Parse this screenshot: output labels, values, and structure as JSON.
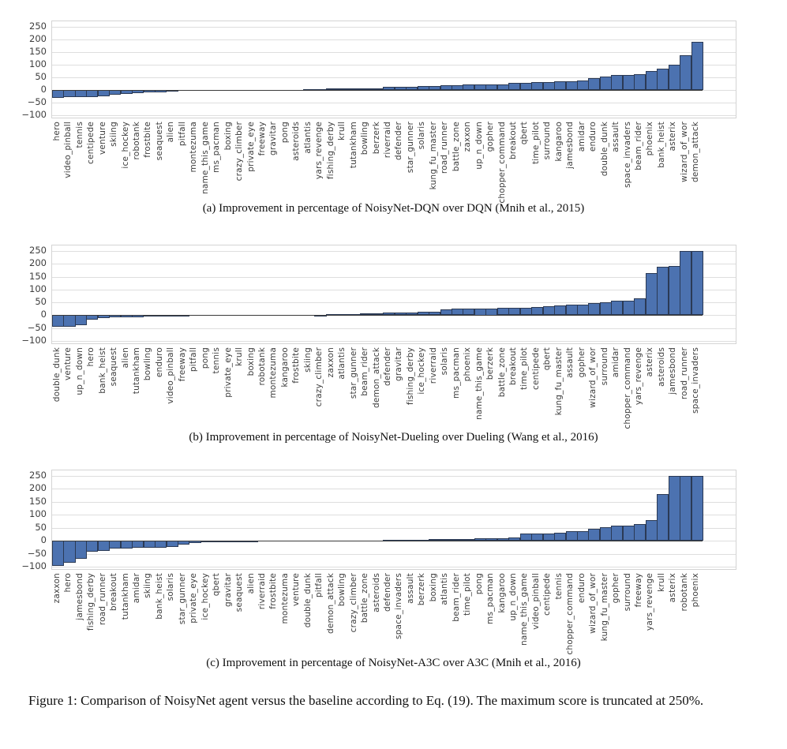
{
  "figure_caption": "Figure 1: Comparison of NoisyNet agent versus the baseline according to Eq. (19). The maximum score is truncated at 250%.",
  "style": {
    "bar_fill": "#4c72b0",
    "bar_edge": "#2b3a55",
    "grid_color": "#dedede",
    "axis_border_color": "#d4d4d4",
    "zero_line_color": "#3a3a3a",
    "tick_label_color": "#3d3d3d",
    "background": "#ffffff"
  },
  "chart_data": [
    {
      "type": "bar",
      "caption": "(a) Improvement in percentage of NoisyNet-DQN over DQN (Mnih et al., 2015)",
      "ylabel": "",
      "xlabel": "",
      "ylim": [
        -100,
        250
      ],
      "y_ticks": [
        250,
        200,
        150,
        100,
        50,
        0,
        -50,
        -100
      ],
      "grid": true,
      "legend": "none",
      "categories": [
        "hero",
        "video_pinball",
        "tennis",
        "centipede",
        "venture",
        "skiing",
        "ice_hockey",
        "robotank",
        "frostbite",
        "seaquest",
        "alien",
        "pitfall",
        "montezuma",
        "name_this_game",
        "ms_pacman",
        "boxing",
        "crazy_climber",
        "private_eye",
        "freeway",
        "gravitar",
        "pong",
        "asteroids",
        "atlantis",
        "yars_revenge",
        "fishing_derby",
        "krull",
        "tutankham",
        "bowling",
        "berzerk",
        "riverraid",
        "defender",
        "star_gunner",
        "solaris",
        "kung_fu_master",
        "road_runner",
        "battle_zone",
        "zaxxon",
        "up_n_down",
        "gopher",
        "chopper_command",
        "breakout",
        "qbert",
        "time_pilot",
        "surround",
        "kangaroo",
        "jamesbond",
        "amidar",
        "enduro",
        "double_dunk",
        "assault",
        "space_invaders",
        "beam_rider",
        "phoenix",
        "bank_heist",
        "asterix",
        "wizard_of_wor",
        "demon_attack"
      ],
      "values": [
        -32,
        -29,
        -28,
        -27,
        -24,
        -18,
        -17,
        -11,
        -10,
        -9,
        -5,
        -1,
        0,
        0,
        0,
        1,
        1,
        1,
        1,
        1,
        2,
        2,
        3,
        4,
        5,
        5,
        5,
        6,
        7,
        12,
        13,
        14,
        15,
        17,
        19,
        20,
        21,
        22,
        23,
        23,
        27,
        29,
        30,
        31,
        33,
        34,
        38,
        46,
        54,
        58,
        61,
        64,
        75,
        86,
        101,
        139,
        191
      ]
    },
    {
      "type": "bar",
      "caption": "(b) Improvement in percentage of NoisyNet-Dueling over Dueling (Wang et al., 2016)",
      "ylabel": "",
      "xlabel": "",
      "ylim": [
        -100,
        250
      ],
      "y_ticks": [
        250,
        200,
        150,
        100,
        50,
        0,
        -50,
        -100
      ],
      "grid": true,
      "legend": "none",
      "categories": [
        "double_dunk",
        "venture",
        "up_n_down",
        "hero",
        "bank_heist",
        "seaquest",
        "alien",
        "tutankham",
        "bowling",
        "enduro",
        "video_pinball",
        "freeway",
        "pitfall",
        "pong",
        "tennis",
        "private_eye",
        "krull",
        "boxing",
        "robotank",
        "montezuma",
        "kangaroo",
        "frostbite",
        "skiing",
        "crazy_climber",
        "zaxxon",
        "atlantis",
        "star_gunner",
        "beam_rider",
        "demon_attack",
        "defender",
        "gravitar",
        "fishing_derby",
        "ice_hockey",
        "riverraid",
        "solaris",
        "ms_pacman",
        "phoenix",
        "name_this_game",
        "berzerk",
        "battle_zone",
        "breakout",
        "time_pilot",
        "centipede",
        "qbert",
        "kung_fu_master",
        "assault",
        "gopher",
        "wizard_of_wor",
        "surround",
        "amidar",
        "chopper_command",
        "yars_revenge",
        "asterix",
        "asteroids",
        "jamesbond",
        "road_runner",
        "space_invaders"
      ],
      "values": [
        -44,
        -44,
        -40,
        -16,
        -10,
        -9,
        -8,
        -7,
        -6,
        -5,
        -4,
        -3,
        -1,
        -1,
        0,
        0,
        0,
        0,
        0,
        0,
        1,
        1,
        2,
        3,
        4,
        5,
        6,
        7,
        9,
        10,
        11,
        12,
        13,
        15,
        24,
        25,
        25,
        26,
        26,
        28,
        29,
        29,
        31,
        35,
        37,
        41,
        42,
        47,
        52,
        57,
        57,
        67,
        163,
        190,
        192,
        250,
        250
      ]
    },
    {
      "type": "bar",
      "caption": "(c) Improvement in percentage of NoisyNet-A3C over A3C (Mnih et al., 2016)",
      "ylabel": "",
      "xlabel": "",
      "ylim": [
        -100,
        250
      ],
      "y_ticks": [
        250,
        200,
        150,
        100,
        50,
        0,
        -50,
        -100
      ],
      "grid": true,
      "legend": "none",
      "categories": [
        "zaxxon",
        "hero",
        "jamesbond",
        "fishing_derby",
        "road_runner",
        "breakout",
        "tutankham",
        "amidar",
        "skiing",
        "bank_heist",
        "solaris",
        "star_gunner",
        "private_eye",
        "ice_hockey",
        "qbert",
        "gravitar",
        "seaquest",
        "alien",
        "riverraid",
        "frostbite",
        "montezuma",
        "venture",
        "double_dunk",
        "pitfall",
        "demon_attack",
        "bowling",
        "crazy_climber",
        "battle_zone",
        "asteroids",
        "defender",
        "space_invaders",
        "assault",
        "berzerk",
        "boxing",
        "atlantis",
        "beam_rider",
        "time_pilot",
        "pong",
        "ms_pacman",
        "kangaroo",
        "up_n_down",
        "name_this_game",
        "video_pinball",
        "centipede",
        "tennis",
        "chopper_command",
        "enduro",
        "wizard_of_wor",
        "kung_fu_master",
        "gopher",
        "surround",
        "freeway",
        "yars_revenge",
        "krull",
        "asterix",
        "robotank",
        "phoenix"
      ],
      "values": [
        -96,
        -85,
        -70,
        -43,
        -39,
        -30,
        -29,
        -28,
        -27,
        -26,
        -25,
        -14,
        -8,
        -6,
        -5,
        -5,
        -4,
        -3,
        -2,
        -1,
        0,
        0,
        0,
        0,
        1,
        1,
        2,
        2,
        2,
        3,
        3,
        4,
        5,
        6,
        6,
        8,
        8,
        9,
        9,
        10,
        12,
        27,
        27,
        27,
        32,
        37,
        37,
        47,
        52,
        58,
        59,
        64,
        80,
        179,
        250,
        250,
        250
      ]
    }
  ]
}
